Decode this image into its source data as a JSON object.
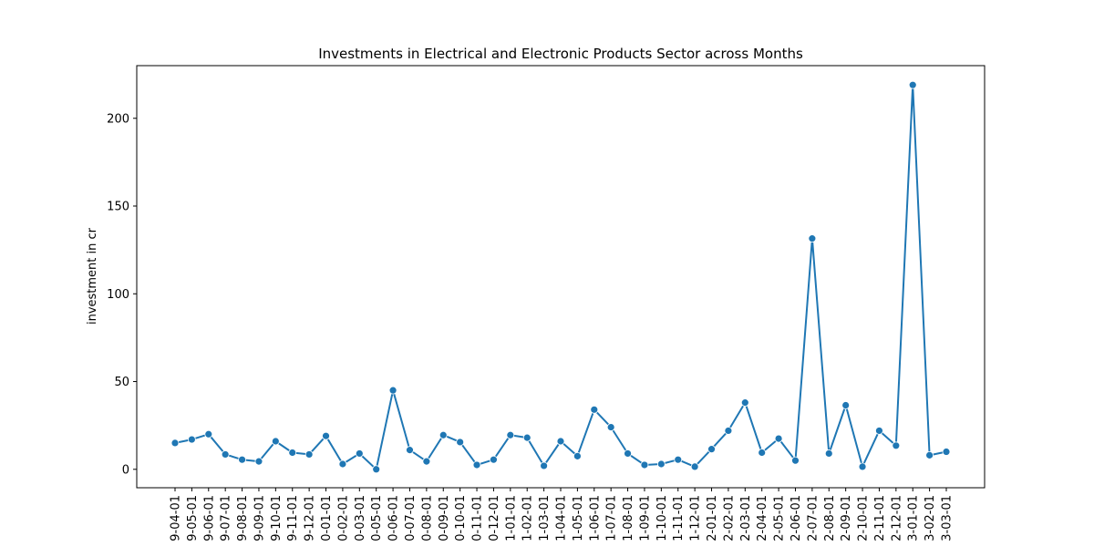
{
  "chart_data": {
    "type": "line",
    "title": "Investments in Electrical and Electronic Products Sector across Months",
    "xlabel": "",
    "ylabel": "investment in cr",
    "ylim": [
      -10.5,
      230
    ],
    "yticks": [
      0,
      50,
      100,
      150,
      200
    ],
    "grid": false,
    "color": "#1f77b4",
    "categories": [
      "9-04-01",
      "9-05-01",
      "9-06-01",
      "9-07-01",
      "9-08-01",
      "9-09-01",
      "9-10-01",
      "9-11-01",
      "9-12-01",
      "0-01-01",
      "0-02-01",
      "0-03-01",
      "0-05-01",
      "0-06-01",
      "0-07-01",
      "0-08-01",
      "0-09-01",
      "0-10-01",
      "0-11-01",
      "0-12-01",
      "1-01-01",
      "1-02-01",
      "1-03-01",
      "1-04-01",
      "1-05-01",
      "1-06-01",
      "1-07-01",
      "1-08-01",
      "1-09-01",
      "1-10-01",
      "1-11-01",
      "1-12-01",
      "2-01-01",
      "2-02-01",
      "2-03-01",
      "2-04-01",
      "2-05-01",
      "2-06-01",
      "2-07-01",
      "2-08-01",
      "2-09-01",
      "2-10-01",
      "2-11-01",
      "2-12-01",
      "3-01-01",
      "3-02-01",
      "3-03-01"
    ],
    "values": [
      15,
      17,
      20,
      8.5,
      5.5,
      4.5,
      16,
      9.5,
      8.5,
      19,
      3,
      9,
      0,
      45,
      11,
      4.5,
      19.5,
      15.5,
      2.5,
      5.5,
      19.5,
      18,
      2,
      16,
      7.5,
      34,
      24,
      9,
      2.5,
      3,
      5.5,
      1.5,
      11.5,
      22,
      38,
      9.5,
      17.5,
      5,
      131.5,
      9,
      36.5,
      1.5,
      22,
      13.5,
      219,
      8,
      10
    ]
  }
}
